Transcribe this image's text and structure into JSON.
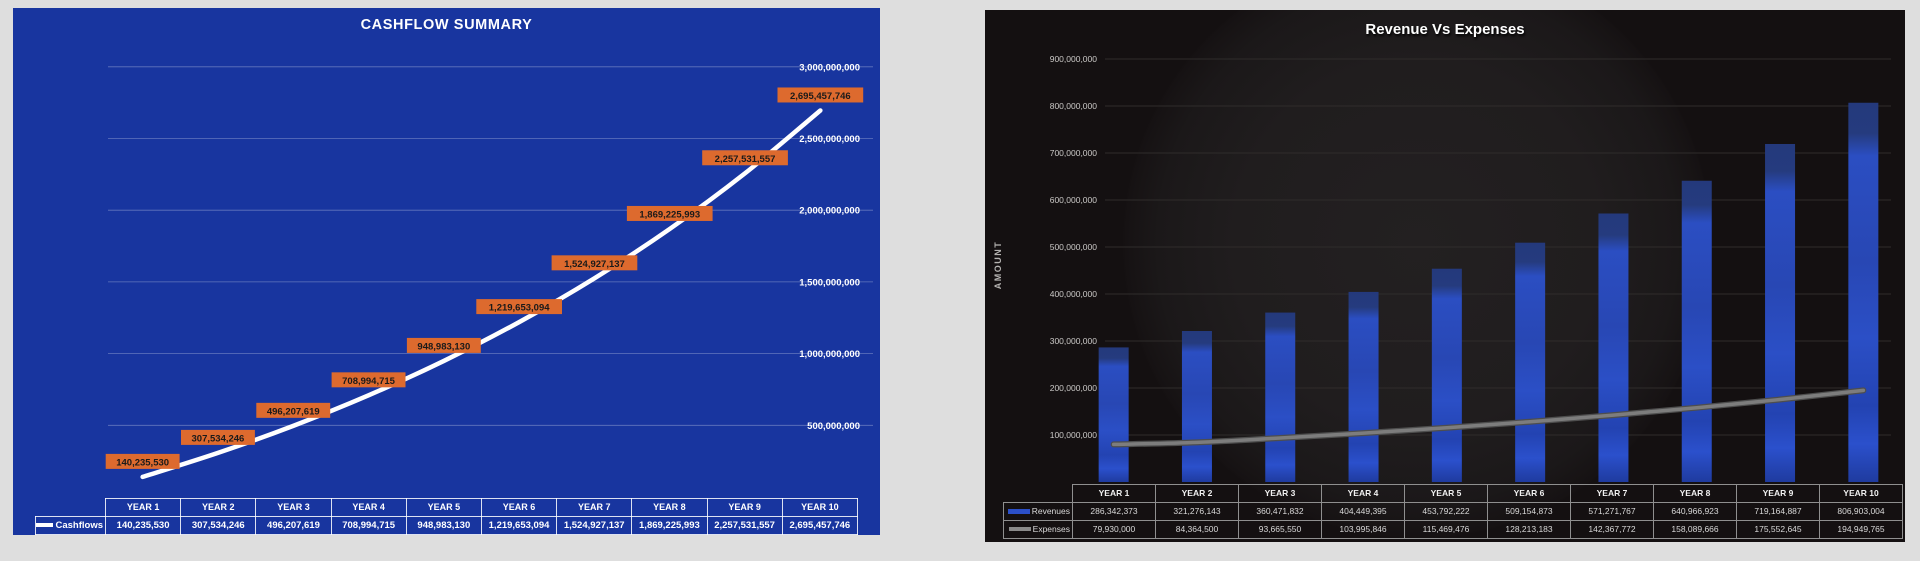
{
  "page": {
    "background": "#DEDEDE"
  },
  "chart_data": [
    {
      "id": "cashflow-summary",
      "type": "line",
      "title": "CASHFLOW SUMMARY",
      "xlabel": "",
      "ylabel": "",
      "categories": [
        "YEAR 1",
        "YEAR 2",
        "YEAR 3",
        "YEAR 4",
        "YEAR 5",
        "YEAR 6",
        "YEAR 7",
        "YEAR 8",
        "YEAR 9",
        "YEAR 10"
      ],
      "series": [
        {
          "name": "Cashflows",
          "type": "line",
          "color": "#FFFFFF",
          "values": [
            140235530,
            307534246,
            496207619,
            708994715,
            948983130,
            1219653094,
            1524927137,
            1869225993,
            2257531557,
            2695457746
          ],
          "values_formatted": [
            "140,235,530",
            "307,534,246",
            "496,207,619",
            "708,994,715",
            "948,983,130",
            "1,219,653,094",
            "1,524,927,137",
            "1,869,225,993",
            "2,257,531,557",
            "2,695,457,746"
          ]
        }
      ],
      "ylim": [
        0,
        3000000000
      ],
      "ytick_step": 500000000,
      "ytick_labels": [
        "500,000,000",
        "1,000,000,000",
        "1,500,000,000",
        "2,000,000,000",
        "2,500,000,000",
        "3,000,000,000"
      ],
      "yaxis_side": "right",
      "grid": true,
      "data_labels": true,
      "legend_position": "table-left",
      "colors": {
        "background": "#18359F",
        "line": "#FFFFFF",
        "label_bg": "#DD6A2E",
        "label_text": "#1A1A1A",
        "grid": "rgba(255,255,255,0.32)",
        "axis_text": "#FFFFFF",
        "table_border": "rgba(255,255,255,0.85)"
      }
    },
    {
      "id": "revenue-vs-expenses",
      "type": "bar+line",
      "title": "Revenue Vs Expenses",
      "xlabel": "",
      "ylabel": "AMOUNT",
      "categories": [
        "YEAR 1",
        "YEAR 2",
        "YEAR 3",
        "YEAR 4",
        "YEAR 5",
        "YEAR 6",
        "YEAR 7",
        "YEAR 8",
        "YEAR 9",
        "YEAR 10"
      ],
      "series": [
        {
          "name": "Revenues",
          "type": "bar",
          "color": "#2B4FC8",
          "values": [
            286342373,
            321276143,
            360471832,
            404449395,
            453792222,
            509154873,
            571271767,
            640966923,
            719164887,
            806903004
          ],
          "values_formatted": [
            "286,342,373",
            "321,276,143",
            "360,471,832",
            "404,449,395",
            "453,792,222",
            "509,154,873",
            "571,271,767",
            "640,966,923",
            "719,164,887",
            "806,903,004"
          ]
        },
        {
          "name": "Expenses",
          "type": "line",
          "color": "#8A8A8A",
          "values": [
            79930000,
            84364500,
            93665550,
            103995846,
            115469476,
            128213183,
            142367772,
            158089666,
            175552645,
            194949765
          ],
          "values_formatted": [
            "79,930,000",
            "84,364,500",
            "93,665,550",
            "103,995,846",
            "115,469,476",
            "128,213,183",
            "142,367,772",
            "158,089,666",
            "175,552,645",
            "194,949,765"
          ]
        }
      ],
      "ylim": [
        0,
        900000000
      ],
      "ytick_step": 100000000,
      "ytick_labels": [
        "100,000,000",
        "200,000,000",
        "300,000,000",
        "400,000,000",
        "500,000,000",
        "600,000,000",
        "700,000,000",
        "800,000,000",
        "900,000,000"
      ],
      "yaxis_side": "left",
      "grid": true,
      "data_labels": false,
      "legend_position": "table-left",
      "colors": {
        "background": "#141011",
        "bar": "#2B4FC8",
        "bar_dark": "#24397C",
        "line": "#757575",
        "grid": "#2F2C2B",
        "axis_text": "#CBC9C7",
        "table_border": "#8F8F8F"
      }
    }
  ]
}
